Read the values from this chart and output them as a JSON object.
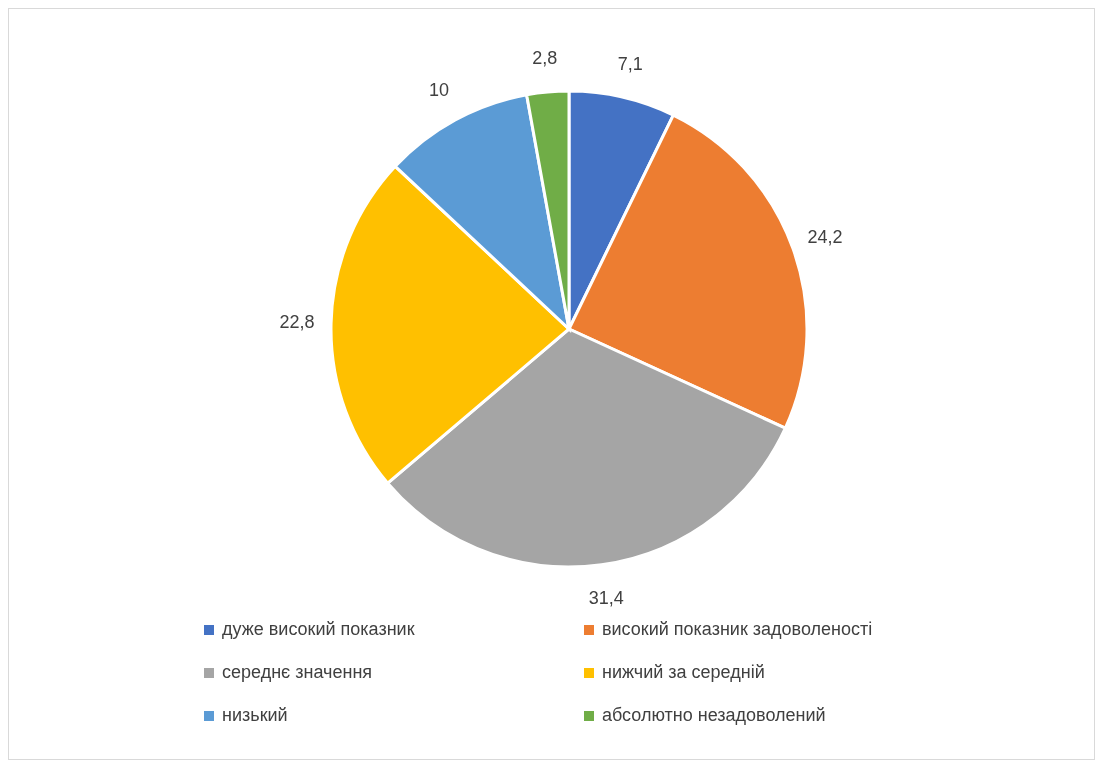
{
  "chart_data": {
    "type": "pie",
    "categories": [
      "дуже високий показник",
      "високий показник задоволеності",
      "середнє значення",
      "нижчий за середній",
      "низький",
      "абсолютно незадоволений"
    ],
    "values": [
      7.1,
      24.2,
      31.4,
      22.8,
      10,
      2.8
    ],
    "value_labels": [
      "7,1",
      "24,2",
      "31,4",
      "22,8",
      "10",
      "2,8"
    ],
    "colors": [
      "#4472c4",
      "#ed7d31",
      "#a5a5a5",
      "#ffc000",
      "#5b9bd5",
      "#70ad47"
    ],
    "legend": "bottom"
  }
}
